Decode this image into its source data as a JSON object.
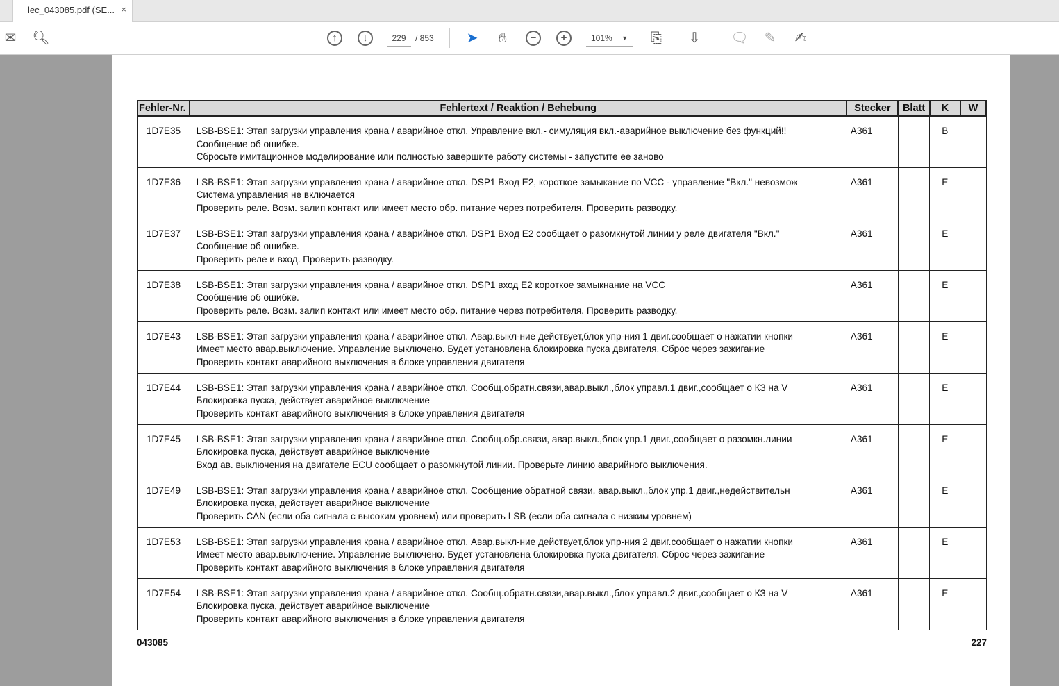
{
  "tab": {
    "title": "lec_043085.pdf (SE...",
    "close": "×"
  },
  "toolbar": {
    "page_current": "229",
    "page_total": "/ 853",
    "zoom": "101%"
  },
  "table": {
    "headers": [
      "Fehler-Nr.",
      "Fehlertext / Reaktion / Behebung",
      "Stecker",
      "Blatt",
      "K",
      "W"
    ],
    "rows": [
      {
        "no": "1D7E35",
        "l1": "LSB-BSE1: Этап загрузки управления крана / аварийное откл. Управление вкл.- симуляция вкл.-аварийное выключение без функций!!",
        "l2": "Сообщение об ошибке.",
        "l3": "Сбросьте имитационное моделирование или полностью завершите работу системы - запустите ее заново",
        "stecker": "A361",
        "k": "B"
      },
      {
        "no": "1D7E36",
        "l1": "LSB-BSE1: Этап загрузки управления крана / аварийное откл. DSP1 Вход E2, короткое замыкание по VCC - управление \"Вкл.\" невозмож",
        "l2": "Система управления не включается",
        "l3": "Проверить реле. Возм. залип контакт или имеет место обр. питание через потребителя. Проверить разводку.",
        "stecker": "A361",
        "k": "E"
      },
      {
        "no": "1D7E37",
        "l1": "LSB-BSE1: Этап загрузки управления крана / аварийное откл. DSP1 Вход E2 сообщает о разомкнутой линии у реле двигателя \"Вкл.\"",
        "l2": "Сообщение об ошибке.",
        "l3": "Проверить реле и вход. Проверить разводку.",
        "stecker": "A361",
        "k": "E"
      },
      {
        "no": "1D7E38",
        "l1": "LSB-BSE1: Этап загрузки управления крана / аварийное откл. DSP1 вход E2 короткое замыкнание на VCC",
        "l2": "Сообщение об ошибке.",
        "l3": "Проверить реле. Возм. залип контакт или имеет место обр. питание через потребителя. Проверить разводку.",
        "stecker": "A361",
        "k": "E"
      },
      {
        "no": "1D7E43",
        "l1": "LSB-BSE1: Этап загрузки управления крана / аварийное откл. Авар.выкл-ние действует,блок упр-ния 1 двиг.сообщает о нажатии кнопки",
        "l2": "Имеет место авар.выключение. Управление выключено. Будет установлена блокировка пуска двигателя. Сброс через зажигание",
        "l3": "Проверить контакт аварийного выключения в блоке управления двигателя",
        "stecker": "A361",
        "k": "E"
      },
      {
        "no": "1D7E44",
        "l1": "LSB-BSE1: Этап загрузки управления крана / аварийное откл. Сообщ.обратн.связи,авар.выкл.,блок управл.1 двиг.,сообщает о КЗ на V",
        "l2": "Блокировка пуска, действует аварийное выключение",
        "l3": "Проверить контакт аварийного выключения в блоке управления двигателя",
        "stecker": "A361",
        "k": "E"
      },
      {
        "no": "1D7E45",
        "l1": "LSB-BSE1: Этап загрузки управления крана / аварийное откл. Сообщ.обр.связи, авар.выкл.,блок упр.1 двиг.,сообщает о разомкн.линии",
        "l2": "Блокировка пуска, действует аварийное выключение",
        "l3": "Вход ав. выключения на двигателе ECU сообщает о разомкнутой линии. Проверьте линию аварийного выключения.",
        "stecker": "A361",
        "k": "E"
      },
      {
        "no": "1D7E49",
        "l1": "LSB-BSE1: Этап загрузки управления крана / аварийное откл. Сообщение обратной связи, авар.выкл.,блок упр.1 двиг.,недействительн",
        "l2": "Блокировка пуска, действует аварийное выключение",
        "l3": "Проверить CAN (если оба сигнала с высоким уровнем) или проверить LSB (если оба сигнала с низким уровнем)",
        "stecker": "A361",
        "k": "E"
      },
      {
        "no": "1D7E53",
        "l1": "LSB-BSE1: Этап загрузки управления крана / аварийное откл. Авар.выкл-ние действует,блок упр-ния 2 двиг.сообщает о нажатии кнопки",
        "l2": "Имеет место авар.выключение. Управление выключено. Будет установлена блокировка пуска двигателя. Сброс через зажигание",
        "l3": "Проверить контакт аварийного выключения в блоке управления двигателя",
        "stecker": "A361",
        "k": "E"
      },
      {
        "no": "1D7E54",
        "l1": "LSB-BSE1: Этап загрузки управления крана / аварийное откл. Сообщ.обратн.связи,авар.выкл.,блок управл.2 двиг.,сообщает о КЗ на V",
        "l2": "Блокировка пуска, действует аварийное выключение",
        "l3": "Проверить контакт аварийного выключения в блоке управления двигателя",
        "stecker": "A361",
        "k": "E"
      }
    ]
  },
  "footer": {
    "left": "043085",
    "right": "227"
  }
}
